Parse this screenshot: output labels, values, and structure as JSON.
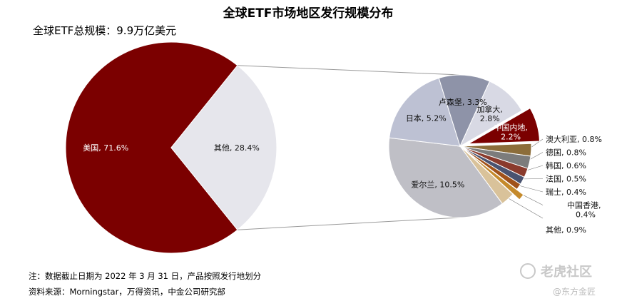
{
  "title": "全球ETF市场地区发行规模分布",
  "subtitle": "全球ETF总规模：9.9万亿美元",
  "footnote": "注：数据截止日期为 2022 年 3 月 31 日，产品按照发行地划分",
  "source": "资料来源：Morningstar，万得资讯，中金公司研究部",
  "watermark": {
    "main": "老虎社区",
    "sub": "@东方金匠"
  },
  "chart_data": [
    {
      "type": "pie",
      "title": "全球ETF市场地区发行规模分布",
      "slices": [
        {
          "label": "美国, 71.6%",
          "value": 71.6,
          "color": "#7b0000"
        },
        {
          "label": "其他, 28.4%",
          "value": 28.4,
          "color": "#e6e6ec"
        }
      ]
    },
    {
      "type": "pie",
      "slices": [
        {
          "label": "中国内地, 2.2%",
          "value": 2.2,
          "color": "#7b0000",
          "exploded": true
        },
        {
          "label": "澳大利亚, 0.8%",
          "value": 0.8,
          "color": "#8c6d3a"
        },
        {
          "label": "德国, 0.8%",
          "value": 0.8,
          "color": "#7c7c7c"
        },
        {
          "label": "韩国, 0.6%",
          "value": 0.6,
          "color": "#8a3a2c"
        },
        {
          "label": "法国, 0.5%",
          "value": 0.5,
          "color": "#4a5370"
        },
        {
          "label": "瑞士, 0.4%",
          "value": 0.4,
          "color": "#a0521a"
        },
        {
          "label": "中国香港, 0.4%",
          "value": 0.4,
          "color": "#c58a2b",
          "exploded": true
        },
        {
          "label": "其他, 0.9%",
          "value": 0.9,
          "color": "#d9c29a"
        },
        {
          "label": "爱尔兰, 10.5%",
          "value": 10.5,
          "color": "#bfbfc6"
        },
        {
          "label": "日本, 5.2%",
          "value": 5.2,
          "color": "#bdc1d3"
        },
        {
          "label": "卢森堡, 3.3%",
          "value": 3.3,
          "color": "#8e93a8"
        },
        {
          "label": "加拿大, 2.8%",
          "value": 2.8,
          "color": "#d8d9e4"
        }
      ]
    }
  ]
}
